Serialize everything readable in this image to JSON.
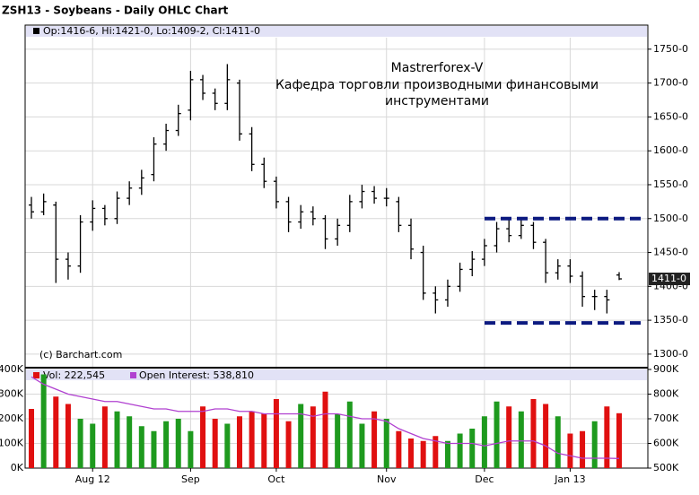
{
  "chart_data": {
    "type": "ohlc",
    "title": "ZSH13 - Soybeans - Daily OHLC Chart",
    "ohlc_label": "Op:1416-6, Hi:1421-0, Lo:1409-2, Cl:1411-0",
    "annotations": [
      "Mastrerforex-V",
      "Кафедра торговли производными финансовыми",
      "инструментами"
    ],
    "annotation_color": "#cc0000",
    "source": "(c) Barchart.com",
    "categories": [
      null,
      null,
      null,
      null,
      null,
      "Aug 12",
      null,
      null,
      null,
      null,
      null,
      null,
      null,
      "Sep",
      null,
      null,
      null,
      null,
      null,
      null,
      "Oct",
      null,
      null,
      null,
      null,
      null,
      null,
      null,
      null,
      "Nov",
      null,
      null,
      null,
      null,
      null,
      null,
      null,
      "Dec",
      null,
      null,
      null,
      null,
      null,
      null,
      "Jan 13",
      null,
      null,
      null,
      null
    ],
    "open": [
      1520,
      1510,
      1520,
      1440,
      1430,
      1495,
      1515,
      1500,
      1530,
      1545,
      1565,
      1610,
      1630,
      1660,
      1705,
      1685,
      1670,
      1700,
      1625,
      1580,
      1555,
      1525,
      1495,
      1510,
      1500,
      1470,
      1490,
      1525,
      1540,
      1530,
      1525,
      1490,
      1450,
      1390,
      1380,
      1400,
      1425,
      1440,
      1460,
      1485,
      1475,
      1490,
      1465,
      1420,
      1430,
      1415,
      1385,
      1385,
      1416.75
    ],
    "high": [
      1532,
      1537,
      1525,
      1450,
      1505,
      1527,
      1520,
      1540,
      1555,
      1572,
      1620,
      1640,
      1668,
      1718,
      1712,
      1692,
      1728,
      1705,
      1635,
      1590,
      1562,
      1532,
      1520,
      1518,
      1505,
      1500,
      1535,
      1550,
      1548,
      1545,
      1532,
      1500,
      1460,
      1400,
      1410,
      1435,
      1452,
      1470,
      1495,
      1500,
      1502,
      1495,
      1470,
      1440,
      1440,
      1422,
      1395,
      1395,
      1421
    ],
    "low": [
      1500,
      1505,
      1405,
      1410,
      1420,
      1482,
      1490,
      1492,
      1520,
      1535,
      1555,
      1600,
      1622,
      1645,
      1675,
      1660,
      1660,
      1615,
      1570,
      1545,
      1515,
      1480,
      1485,
      1490,
      1455,
      1460,
      1480,
      1515,
      1522,
      1518,
      1480,
      1440,
      1380,
      1360,
      1370,
      1392,
      1415,
      1430,
      1450,
      1465,
      1470,
      1455,
      1405,
      1410,
      1405,
      1370,
      1365,
      1360,
      1409.25
    ],
    "close": [
      1510,
      1525,
      1440,
      1430,
      1495,
      1515,
      1500,
      1530,
      1545,
      1560,
      1610,
      1630,
      1655,
      1705,
      1685,
      1670,
      1705,
      1625,
      1580,
      1555,
      1525,
      1495,
      1510,
      1500,
      1470,
      1490,
      1525,
      1540,
      1530,
      1530,
      1490,
      1455,
      1390,
      1380,
      1400,
      1425,
      1440,
      1460,
      1485,
      1475,
      1490,
      1465,
      1420,
      1430,
      1415,
      1385,
      1385,
      1380,
      1411
    ],
    "color": "#000000",
    "ylim": [
      1280,
      1767
    ],
    "yticks": [
      {
        "value": 1300,
        "label": "1300-0"
      },
      {
        "value": 1350,
        "label": "1350-0"
      },
      {
        "value": 1400,
        "label": "1400-0"
      },
      {
        "value": 1450,
        "label": "1450-0"
      },
      {
        "value": 1500,
        "label": "1500-0"
      },
      {
        "value": 1550,
        "label": "1550-0"
      },
      {
        "value": 1600,
        "label": "1600-0"
      },
      {
        "value": 1650,
        "label": "1650-0"
      },
      {
        "value": 1700,
        "label": "1700-0"
      },
      {
        "value": 1750,
        "label": "1750-0"
      }
    ],
    "last_label": "1411-0",
    "levels": [
      1500,
      1346
    ],
    "level_color": "#0c1a80",
    "grid": true,
    "volume": {
      "name": "Vol: 222,545",
      "up_color": "#1e9a1e",
      "down_color": "#e01010",
      "values": [
        240000,
        380000,
        290000,
        260000,
        200000,
        180000,
        250000,
        230000,
        210000,
        170000,
        150000,
        190000,
        200000,
        150000,
        250000,
        200000,
        180000,
        210000,
        230000,
        220000,
        280000,
        190000,
        260000,
        250000,
        310000,
        220000,
        270000,
        180000,
        230000,
        200000,
        150000,
        120000,
        110000,
        130000,
        110000,
        140000,
        160000,
        210000,
        270000,
        250000,
        230000,
        280000,
        260000,
        210000,
        140000,
        150000,
        190000,
        250000,
        222545
      ],
      "ylim": [
        0,
        400000
      ],
      "yticks": [
        {
          "value": 0,
          "label": "0K"
        },
        {
          "value": 100000,
          "label": "100K"
        },
        {
          "value": 200000,
          "label": "200K"
        },
        {
          "value": 300000,
          "label": "300K"
        },
        {
          "value": 400000,
          "label": "400K"
        }
      ]
    },
    "open_interest": {
      "name": "Open Interest: 538,810",
      "color": "#b040d0",
      "axis": "y2",
      "values": [
        870000,
        840000,
        820000,
        800000,
        790000,
        780000,
        770000,
        770000,
        760000,
        750000,
        740000,
        740000,
        730000,
        730000,
        730000,
        740000,
        740000,
        730000,
        730000,
        720000,
        720000,
        720000,
        720000,
        710000,
        720000,
        720000,
        710000,
        700000,
        700000,
        690000,
        660000,
        640000,
        620000,
        610000,
        600000,
        600000,
        600000,
        590000,
        600000,
        610000,
        610000,
        610000,
        590000,
        560000,
        550000,
        540000,
        540000,
        540000,
        538810
      ],
      "y2lim": [
        500000,
        900000
      ],
      "y2ticks": [
        {
          "value": 500000,
          "label": "500K"
        },
        {
          "value": 600000,
          "label": "600K"
        },
        {
          "value": 700000,
          "label": "700K"
        },
        {
          "value": 800000,
          "label": "800K"
        },
        {
          "value": 900000,
          "label": "900K"
        }
      ]
    }
  }
}
